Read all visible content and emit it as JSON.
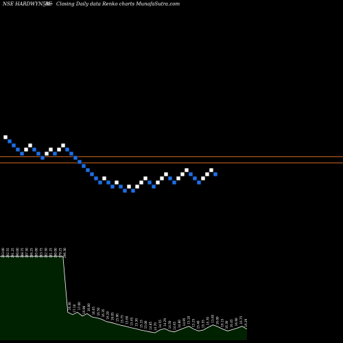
{
  "header": {
    "symbol": "NSE HARDWYN_BE",
    "change": "5%",
    "arrow": "~",
    "caption": "Closing Daily data  Renko  charts MunafaSutra.com"
  },
  "colors": {
    "background": "#000000",
    "up_brick": "#ffffff",
    "down_brick": "#1e6fe6",
    "level_line": "#c8641e",
    "volume_fill": "#002200",
    "volume_stroke": "#ffffff"
  },
  "chart_data": {
    "type": "renko",
    "bricks": [
      {
        "dir": "up",
        "value": 18
      },
      {
        "dir": "down",
        "value": 17
      },
      {
        "dir": "down",
        "value": 16
      },
      {
        "dir": "down",
        "value": 15
      },
      {
        "dir": "down",
        "value": 14
      },
      {
        "dir": "up",
        "value": 15
      },
      {
        "dir": "up",
        "value": 16
      },
      {
        "dir": "down",
        "value": 15
      },
      {
        "dir": "down",
        "value": 14
      },
      {
        "dir": "down",
        "value": 13
      },
      {
        "dir": "up",
        "value": 14
      },
      {
        "dir": "up",
        "value": 15
      },
      {
        "dir": "down",
        "value": 14
      },
      {
        "dir": "up",
        "value": 15
      },
      {
        "dir": "up",
        "value": 16
      },
      {
        "dir": "down",
        "value": 15
      },
      {
        "dir": "down",
        "value": 14
      },
      {
        "dir": "down",
        "value": 13
      },
      {
        "dir": "down",
        "value": 12
      },
      {
        "dir": "down",
        "value": 11
      },
      {
        "dir": "down",
        "value": 10
      },
      {
        "dir": "down",
        "value": 9
      },
      {
        "dir": "down",
        "value": 8
      },
      {
        "dir": "down",
        "value": 7
      },
      {
        "dir": "up",
        "value": 8
      },
      {
        "dir": "down",
        "value": 7
      },
      {
        "dir": "down",
        "value": 6
      },
      {
        "dir": "up",
        "value": 7
      },
      {
        "dir": "down",
        "value": 6
      },
      {
        "dir": "down",
        "value": 5
      },
      {
        "dir": "up",
        "value": 6
      },
      {
        "dir": "down",
        "value": 5
      },
      {
        "dir": "up",
        "value": 6
      },
      {
        "dir": "up",
        "value": 7
      },
      {
        "dir": "up",
        "value": 8
      },
      {
        "dir": "down",
        "value": 7
      },
      {
        "dir": "down",
        "value": 6
      },
      {
        "dir": "up",
        "value": 7
      },
      {
        "dir": "up",
        "value": 8
      },
      {
        "dir": "up",
        "value": 9
      },
      {
        "dir": "down",
        "value": 8
      },
      {
        "dir": "down",
        "value": 7
      },
      {
        "dir": "up",
        "value": 8
      },
      {
        "dir": "up",
        "value": 9
      },
      {
        "dir": "up",
        "value": 10
      },
      {
        "dir": "down",
        "value": 9
      },
      {
        "dir": "down",
        "value": 8
      },
      {
        "dir": "down",
        "value": 7
      },
      {
        "dir": "up",
        "value": 8
      },
      {
        "dir": "up",
        "value": 9
      },
      {
        "dir": "up",
        "value": 10
      },
      {
        "dir": "down",
        "value": 9
      }
    ],
    "level_lines": [
      13.25,
      11.75
    ],
    "volume": [
      180,
      180,
      180,
      180,
      180,
      180,
      180,
      180,
      180,
      180,
      180,
      180,
      180,
      180,
      60,
      55,
      60,
      52,
      57,
      50,
      48,
      45,
      40,
      38,
      35,
      32,
      30,
      27,
      25,
      22,
      20,
      18,
      16,
      22,
      25,
      20,
      18,
      22,
      26,
      30,
      24,
      20,
      22,
      28,
      33,
      29,
      24,
      20,
      23,
      26,
      30,
      24
    ],
    "price_labels": [
      "293.00",
      "292.55",
      "291.25",
      "290.00",
      "288.75",
      "287.50",
      "286.25",
      "285.00",
      "283.75",
      "282.50",
      "281.25",
      "280.00",
      "279.25",
      "296.30",
      "16.30",
      "17.10",
      "17.00",
      "16.90",
      "16.80",
      "16.65",
      "16.50",
      "16.35",
      "16.20",
      "16.05",
      "15.90",
      "15.75",
      "15.60",
      "15.45",
      "15.30",
      "15.15",
      "15.00",
      "14.85",
      "14.70",
      "14.55",
      "14.29",
      "14.50",
      "14.65",
      "14.80",
      "14.95",
      "15.10",
      "15.25",
      "15.40",
      "15.55",
      "15.70",
      "15.85",
      "16.00",
      "16.15",
      "16.30",
      "16.45",
      "16.60",
      "16.75",
      "16.29"
    ],
    "title": "",
    "xlabel": "",
    "ylabel": ""
  }
}
